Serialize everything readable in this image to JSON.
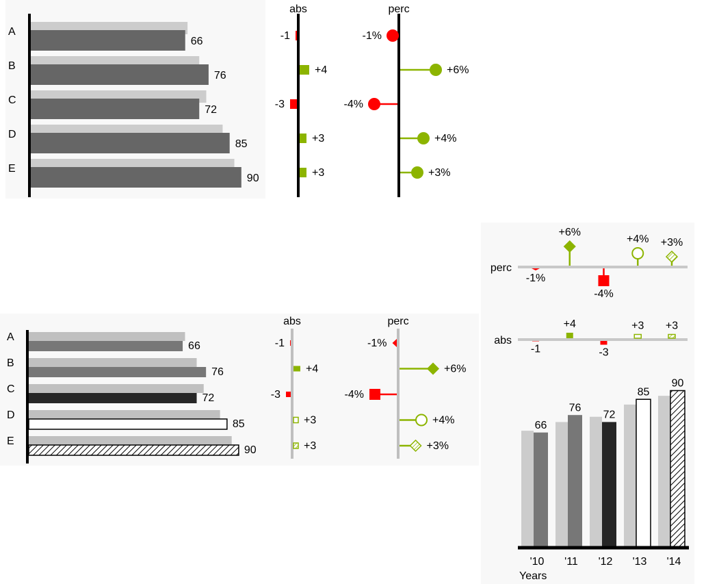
{
  "chart_data": [
    {
      "type": "bar",
      "orientation": "horizontal",
      "categories": [
        "A",
        "B",
        "C",
        "D",
        "E"
      ],
      "series": [
        {
          "color": "#cccccc",
          "values": [
            67,
            72,
            75,
            82,
            87
          ]
        },
        {
          "color": "#666666",
          "values": [
            66,
            76,
            72,
            85,
            90
          ]
        }
      ]
    },
    {
      "type": "pin",
      "orientation": "horizontal",
      "title": "abs",
      "values": [
        -1,
        4,
        -3,
        3,
        3
      ],
      "value_labels": [
        "-1",
        "+4",
        "-3",
        "+3",
        "+3"
      ],
      "markers": [
        "bar",
        "bar",
        "bar",
        "bar",
        "bar"
      ],
      "positive_color": "#8cb400",
      "negative_color": "#ff0000"
    },
    {
      "type": "pin",
      "orientation": "horizontal",
      "title": "perc",
      "values": [
        -1,
        6,
        -4,
        4,
        3
      ],
      "value_labels": [
        "-1%",
        "+6%",
        "-4%",
        "+4%",
        "+3%"
      ],
      "markers": [
        "circle",
        "circle",
        "circle",
        "circle",
        "circle"
      ],
      "positive_color": "#8cb400",
      "negative_color": "#ff0000"
    },
    {
      "type": "bar",
      "orientation": "horizontal",
      "categories": [
        "A",
        "B",
        "C",
        "D",
        "E"
      ],
      "series": [
        {
          "color": "#c0c0c0",
          "values": [
            67,
            72,
            75,
            82,
            87
          ]
        },
        {
          "fills": [
            "#777777",
            "#777777",
            "#262626",
            "#ffffff",
            "hatch"
          ],
          "values": [
            66,
            76,
            72,
            85,
            90
          ]
        }
      ]
    },
    {
      "type": "pin",
      "orientation": "horizontal",
      "title": "abs",
      "values": [
        -1,
        4,
        -3,
        3,
        3
      ],
      "value_labels": [
        "-1",
        "+4",
        "-3",
        "+3",
        "+3"
      ],
      "markers": [
        "bar",
        "bar",
        "bar",
        "bar-outline",
        "bar-hatch"
      ],
      "positive_color": "#8cb400",
      "negative_color": "#ff0000"
    },
    {
      "type": "pin",
      "orientation": "horizontal",
      "title": "perc",
      "values": [
        -1,
        6,
        -4,
        4,
        3
      ],
      "value_labels": [
        "-1%",
        "+6%",
        "-4%",
        "+4%",
        "+3%"
      ],
      "markers": [
        "triangle",
        "diamond",
        "square",
        "circle-outline",
        "diamond-hatch"
      ],
      "positive_color": "#8cb400",
      "negative_color": "#ff0000"
    },
    {
      "type": "pin",
      "orientation": "vertical",
      "title": "perc",
      "values": [
        -1,
        6,
        -4,
        4,
        3
      ],
      "value_labels": [
        "-1%",
        "+6%",
        "-4%",
        "+4%",
        "+3%"
      ],
      "markers": [
        "triangle",
        "diamond",
        "square",
        "circle-outline",
        "diamond-hatch"
      ],
      "positive_color": "#8cb400",
      "negative_color": "#ff0000"
    },
    {
      "type": "pin",
      "orientation": "vertical",
      "title": "abs",
      "values": [
        -1,
        4,
        -3,
        3,
        3
      ],
      "value_labels": [
        "-1",
        "+4",
        "-3",
        "+3",
        "+3"
      ],
      "markers": [
        "bar",
        "bar",
        "bar",
        "bar-outline",
        "bar-hatch"
      ],
      "positive_color": "#8cb400",
      "negative_color": "#ff0000"
    },
    {
      "type": "bar",
      "orientation": "vertical",
      "categories": [
        "'10",
        "'11",
        "'12",
        "'13",
        "'14"
      ],
      "x_label": "Years",
      "series": [
        {
          "color": "#cccccc",
          "values": [
            67,
            72,
            75,
            82,
            87
          ]
        },
        {
          "fills": [
            "#777777",
            "#777777",
            "#262626",
            "#ffffff",
            "hatch"
          ],
          "values": [
            66,
            76,
            72,
            85,
            90
          ]
        }
      ]
    }
  ]
}
